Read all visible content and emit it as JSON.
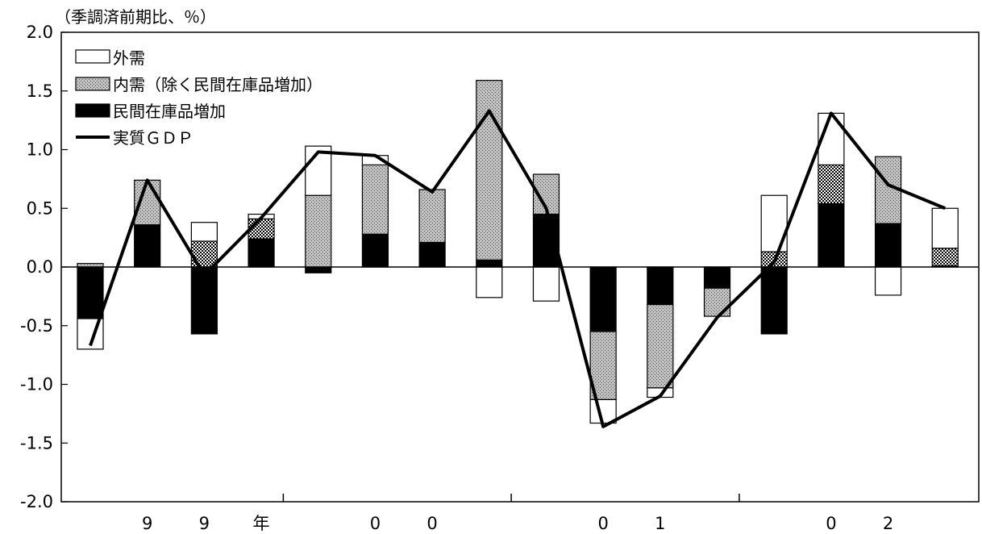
{
  "chart_data": {
    "type": "bar",
    "unit_label": "（季調済前期比、％）",
    "ylim": [
      -2.0,
      2.0
    ],
    "yticks": [
      "2.0",
      "1.5",
      "1.0",
      "0.5",
      "0.0",
      "-0.5",
      "-1.0",
      "-1.5",
      "-2.0"
    ],
    "x_tick_labels": [
      "",
      "9",
      "9",
      "年",
      "",
      "0",
      "0",
      "",
      "",
      "0",
      "1",
      "",
      "",
      "0",
      "2",
      ""
    ],
    "categories": [
      "",
      "",
      "",
      "",
      "",
      "",
      "",
      "",
      "",
      "",
      "",
      "",
      "",
      "",
      "",
      ""
    ],
    "series": [
      {
        "name": "外需",
        "kind": "bar",
        "values": [
          -0.26,
          0.0,
          0.16,
          0.04,
          0.42,
          0.08,
          0.0,
          -0.26,
          -0.29,
          -0.2,
          -0.08,
          0.0,
          0.48,
          0.44,
          -0.24,
          0.34
        ]
      },
      {
        "name": "内需（除く民間在庫品増加）",
        "kind": "bar",
        "values": [
          0.03,
          0.38,
          0.22,
          0.17,
          0.61,
          0.59,
          0.45,
          1.53,
          0.34,
          -0.58,
          -0.71,
          -0.24,
          0.13,
          0.33,
          0.57,
          0.15
        ]
      },
      {
        "name": "民間在庫品増加",
        "kind": "bar",
        "values": [
          -0.44,
          0.36,
          -0.57,
          0.24,
          -0.05,
          0.28,
          0.21,
          0.06,
          0.45,
          -0.55,
          -0.32,
          -0.18,
          -0.57,
          0.54,
          0.37,
          0.01
        ]
      },
      {
        "name": "実質ＧＤＰ",
        "kind": "line",
        "values": [
          -0.67,
          0.74,
          -0.07,
          0.42,
          0.98,
          0.95,
          0.64,
          1.33,
          0.5,
          -1.36,
          -1.1,
          -0.43,
          0.04,
          1.31,
          0.7,
          0.5
        ]
      }
    ],
    "legend_position": "top-left",
    "colors": {
      "domestic_fill": "#a6a6a6",
      "inventory_fill": "#000000",
      "foreign_fill": "#ffffff",
      "line": "#000000"
    }
  }
}
